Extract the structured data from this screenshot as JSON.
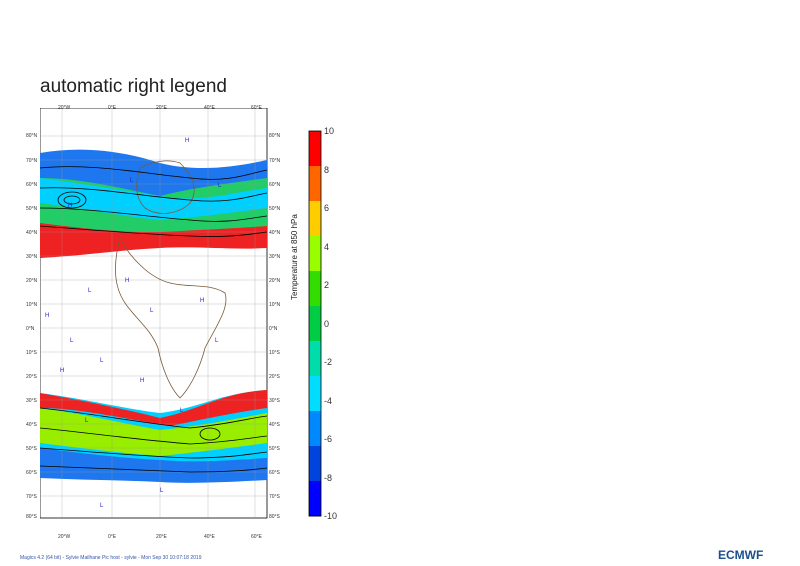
{
  "title": "automatic right  legend",
  "map": {
    "lon_labels": [
      "20°W",
      "0°E",
      "20°E",
      "40°E",
      "60°E"
    ],
    "lat_labels_left": [
      "80°N",
      "70°N",
      "60°N",
      "50°N",
      "40°N",
      "30°N",
      "20°N",
      "10°N",
      "0°N",
      "10°S",
      "20°S",
      "30°S",
      "40°S",
      "50°S",
      "60°S",
      "70°S",
      "80°S"
    ],
    "lat_labels_right": [
      "80°N",
      "70°N",
      "60°N",
      "50°N",
      "40°N",
      "30°N",
      "20°N",
      "10°N",
      "0°N",
      "10°S",
      "20°S",
      "30°S",
      "40°S",
      "50°S",
      "60°S",
      "70°S",
      "80°S"
    ],
    "pressure_labels": [
      "H",
      "L",
      "H",
      "L",
      "L",
      "H",
      "L",
      "H",
      "H",
      "L",
      "L",
      "H",
      "L",
      "L",
      "H",
      "L",
      "L",
      "L"
    ]
  },
  "legend": {
    "title": "Temperature at 850 hPa",
    "ticks": [
      "10",
      "8",
      "6",
      "4",
      "2",
      "0",
      "-2",
      "-4",
      "-6",
      "-8",
      "-10"
    ],
    "colors": [
      "#ff0000",
      "#ff6600",
      "#ffcc00",
      "#99ff00",
      "#33dd00",
      "#00cc44",
      "#00ddaa",
      "#00ddff",
      "#0088ff",
      "#0044dd",
      "#0000ff"
    ]
  },
  "footer": "Magics 4.2 (64 bit) - Sylvie Mailhane Pic host - sylvie - Mon Sep 30 10:07:18 2019",
  "logo": "ECMWF"
}
